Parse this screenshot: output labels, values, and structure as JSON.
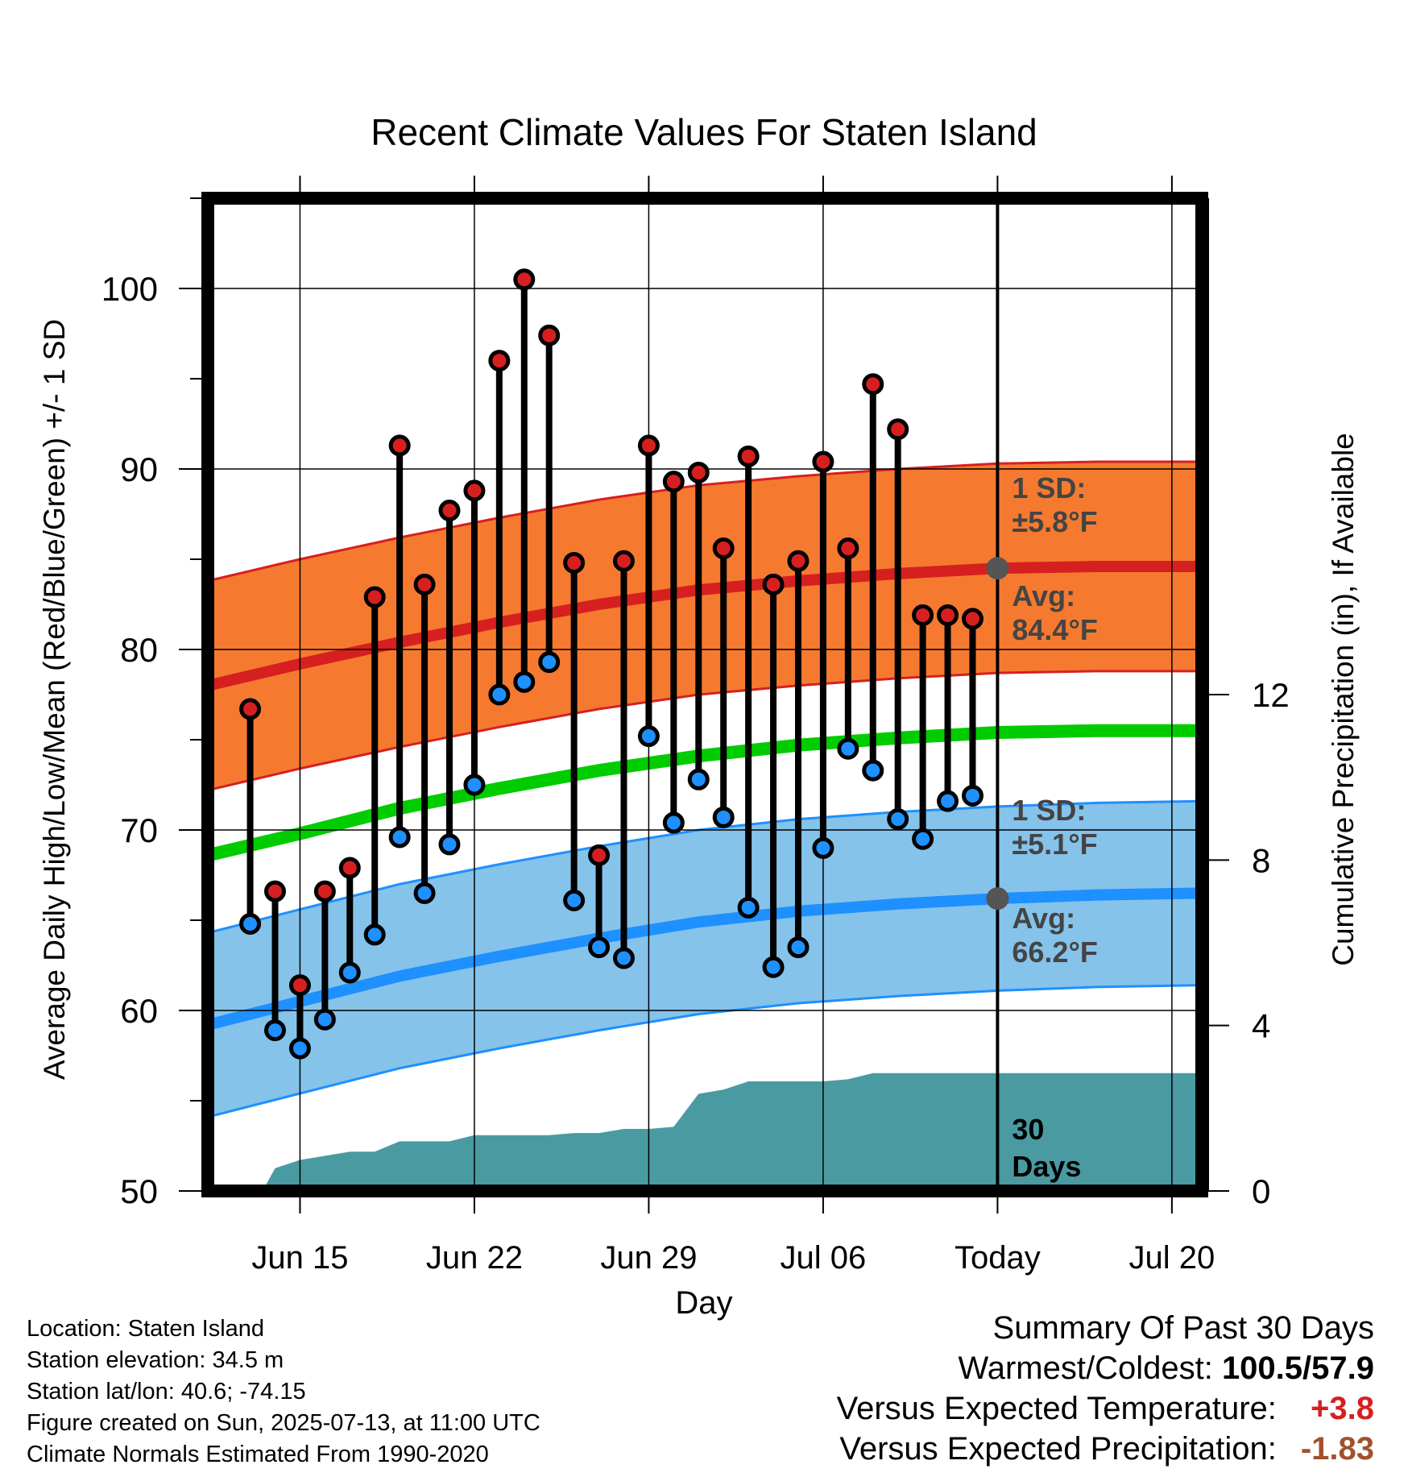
{
  "chart_data": {
    "type": "line",
    "title": "Recent Climate Values For Staten Island",
    "xlabel": "Day",
    "ylabel": "Average Daily High/Low/Mean (Red/Blue/Green) +/- 1 SD",
    "ylabel_right": "Cumulative Precipitation (in), If Available",
    "ylim": [
      50,
      105
    ],
    "ylim_right": [
      0,
      24
    ],
    "yticks": [
      50,
      60,
      70,
      80,
      90,
      100
    ],
    "yticks_right": [
      0,
      4,
      8,
      12
    ],
    "xlim": [
      -1.7,
      38.2
    ],
    "xticks": [
      {
        "x": 2,
        "label": "Jun 15"
      },
      {
        "x": 9,
        "label": "Jun 22"
      },
      {
        "x": 16,
        "label": "Jun 29"
      },
      {
        "x": 23,
        "label": "Jul 06"
      },
      {
        "x": 30,
        "label": "Today"
      },
      {
        "x": 37,
        "label": "Jul 20"
      }
    ],
    "today_x": 30,
    "day0": "Jun 13",
    "grid": true,
    "colors": {
      "high": "#d62020",
      "high_band": "#f57a30",
      "low": "#1e90ff",
      "low_band": "#85c3ea",
      "mean": "#00cc00",
      "precip": "#4a9aa2",
      "marker_high": "#d62020",
      "marker_low": "#1e90ff",
      "today_marker": "#555555"
    },
    "normals": {
      "x": [
        -1.7,
        2,
        6,
        10,
        14,
        18,
        22,
        26,
        30,
        34,
        38.2
      ],
      "high_avg": [
        78.0,
        79.2,
        80.4,
        81.5,
        82.5,
        83.3,
        83.8,
        84.2,
        84.5,
        84.6,
        84.6
      ],
      "high_sd": 5.8,
      "low_avg": [
        59.2,
        60.5,
        61.9,
        63.0,
        64.0,
        64.9,
        65.5,
        65.9,
        66.2,
        66.4,
        66.5
      ],
      "low_sd": 5.1,
      "mean_avg": [
        68.6,
        69.8,
        71.2,
        72.3,
        73.3,
        74.1,
        74.7,
        75.1,
        75.4,
        75.5,
        75.5
      ]
    },
    "band_labels": {
      "high_sd": "1 SD:",
      "high_sd_value": "±5.8°F",
      "high_avg": "Avg:",
      "high_avg_value": "84.4°F",
      "low_sd": "1 SD:",
      "low_sd_value": "±5.1°F",
      "low_avg": "Avg:",
      "low_avg_value": "66.2°F",
      "precip_days": "30",
      "precip_days_label": "Days"
    },
    "observed": {
      "x": [
        0,
        1,
        2,
        3,
        4,
        5,
        6,
        7,
        8,
        9,
        10,
        11,
        12,
        13,
        14,
        15,
        16,
        17,
        18,
        19,
        20,
        21,
        22,
        23,
        24,
        25,
        26,
        27,
        28,
        29
      ],
      "high": [
        76.7,
        66.6,
        61.4,
        66.6,
        67.9,
        82.9,
        91.3,
        83.6,
        87.7,
        88.8,
        96.0,
        100.5,
        97.4,
        84.8,
        68.6,
        84.9,
        91.3,
        89.3,
        89.8,
        85.6,
        90.7,
        83.6,
        84.9,
        90.4,
        85.6,
        94.7,
        92.2,
        81.9,
        81.9,
        81.7
      ],
      "low": [
        64.8,
        58.9,
        57.9,
        59.5,
        62.1,
        64.2,
        69.6,
        66.5,
        69.2,
        72.5,
        77.5,
        78.2,
        79.3,
        66.1,
        63.5,
        62.9,
        75.2,
        70.4,
        72.8,
        70.7,
        65.7,
        62.4,
        63.5,
        69.0,
        74.5,
        73.3,
        70.6,
        69.5,
        71.6,
        71.9
      ]
    },
    "precipitation": {
      "x": [
        -1.7,
        0.5,
        1,
        2,
        3,
        4,
        5,
        6,
        7,
        8,
        9,
        10,
        11,
        12,
        13,
        14,
        15,
        16,
        17,
        18,
        19,
        20,
        21,
        22,
        23,
        24,
        25,
        26,
        27,
        28,
        29,
        30,
        38.2
      ],
      "cumulative": [
        0,
        0,
        0.55,
        0.75,
        0.85,
        0.95,
        0.95,
        1.2,
        1.2,
        1.2,
        1.35,
        1.35,
        1.35,
        1.35,
        1.4,
        1.4,
        1.5,
        1.5,
        1.55,
        2.35,
        2.45,
        2.65,
        2.65,
        2.65,
        2.65,
        2.7,
        2.85,
        2.85,
        2.85,
        2.85,
        2.85,
        2.85,
        2.85
      ]
    }
  },
  "station": {
    "location": "Location: Staten Island",
    "elevation": "Station elevation: 34.5 m",
    "latlon": "Station lat/lon: 40.6; -74.15",
    "created": "Figure created on Sun, 2025-07-13, at 11:00 UTC",
    "normals": "Climate Normals Estimated From 1990-2020"
  },
  "summary": {
    "title": "Summary Of Past 30 Days",
    "warm_cold_label": "Warmest/Coldest:",
    "warm_cold_value": "100.5/57.9",
    "temp_label": "Versus Expected Temperature:",
    "temp_value": "+3.8",
    "temp_color": "#d62020",
    "precip_label": "Versus Expected Precipitation:",
    "precip_value": "-1.83",
    "precip_color": "#a0522d"
  }
}
